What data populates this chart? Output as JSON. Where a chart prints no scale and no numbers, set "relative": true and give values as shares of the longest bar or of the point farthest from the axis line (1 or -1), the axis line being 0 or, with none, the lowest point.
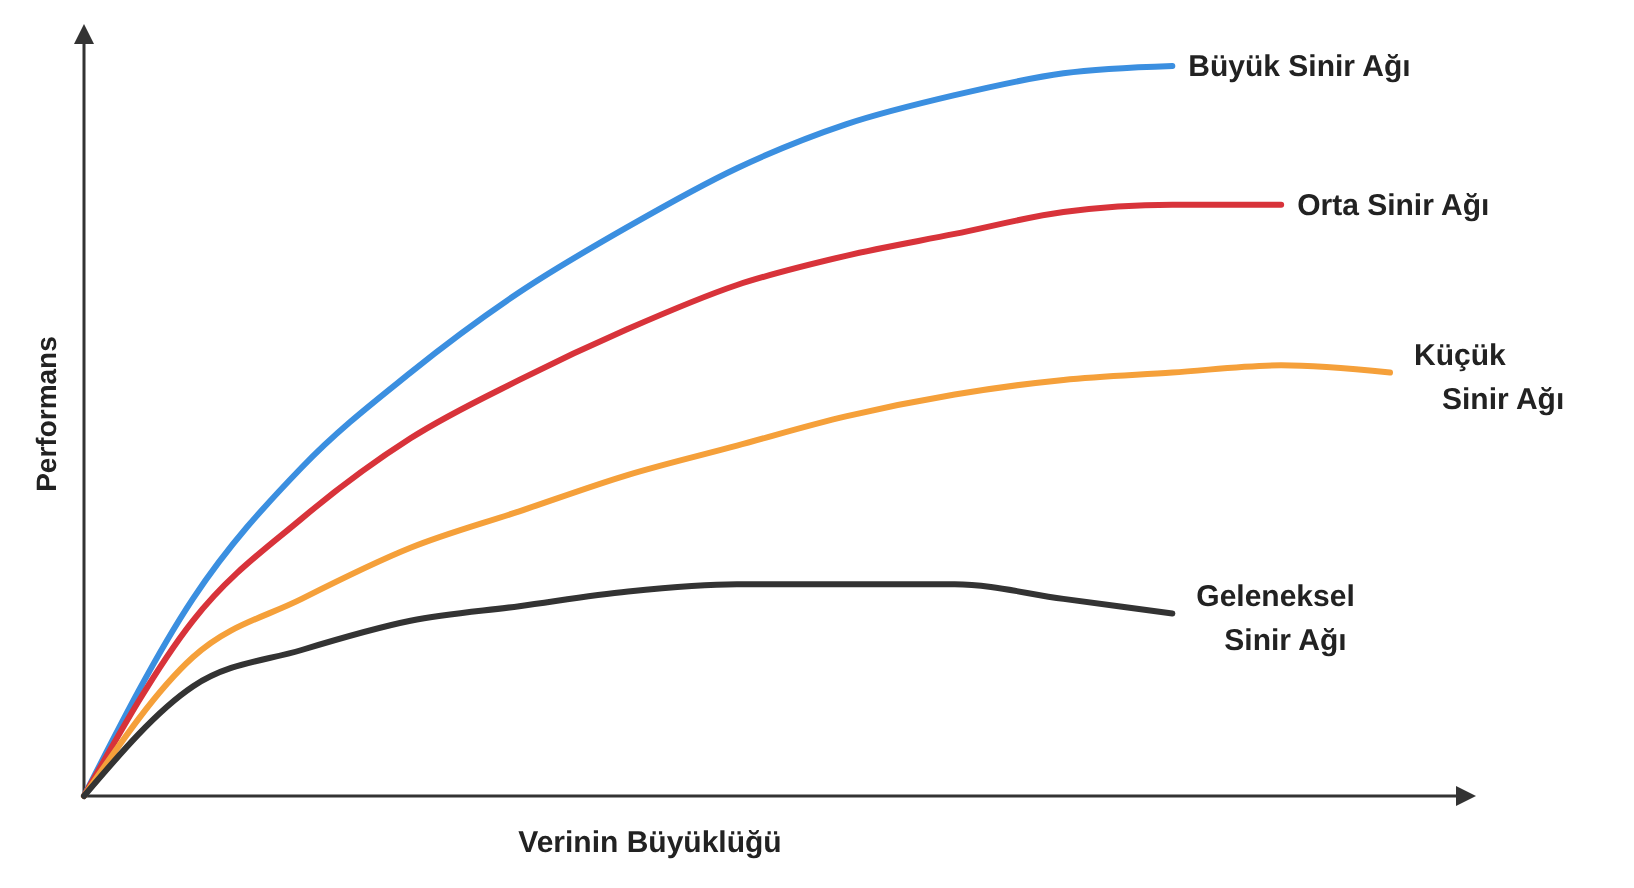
{
  "chart_data": {
    "type": "line",
    "relative": true,
    "xlabel": "Verinin Büyüklüğü",
    "ylabel": "Performans",
    "categories": [
      null,
      null,
      null,
      null,
      null,
      null,
      null,
      null,
      null,
      null,
      null,
      null,
      null
    ],
    "marker": "none",
    "line_style": "solid",
    "series": [
      {
        "name": "Büyük Sinir Ağı",
        "color": "#3b8fe0",
        "values": [
          0,
          0.27,
          0.45,
          0.58,
          0.69,
          0.78,
          0.86,
          0.92,
          0.96,
          0.99,
          1.0,
          null,
          null
        ]
      },
      {
        "name": "Orta Sinir Ağı",
        "color": "#d8333a",
        "values": [
          0,
          0.24,
          0.38,
          0.49,
          0.57,
          0.64,
          0.7,
          0.74,
          0.77,
          0.8,
          0.81,
          0.81,
          null
        ]
      },
      {
        "name": "Küçük Sinir Ağı",
        "color": "#f5a03a",
        "values": [
          0,
          0.19,
          0.27,
          0.34,
          0.39,
          0.44,
          0.48,
          0.52,
          0.55,
          0.57,
          0.58,
          0.59,
          0.58
        ]
      },
      {
        "name": "Geleneksel Sinir Ağı",
        "color": "#333333",
        "values": [
          0,
          0.15,
          0.2,
          0.24,
          0.26,
          0.28,
          0.29,
          0.29,
          0.29,
          0.27,
          0.25,
          null,
          null
        ]
      }
    ]
  }
}
